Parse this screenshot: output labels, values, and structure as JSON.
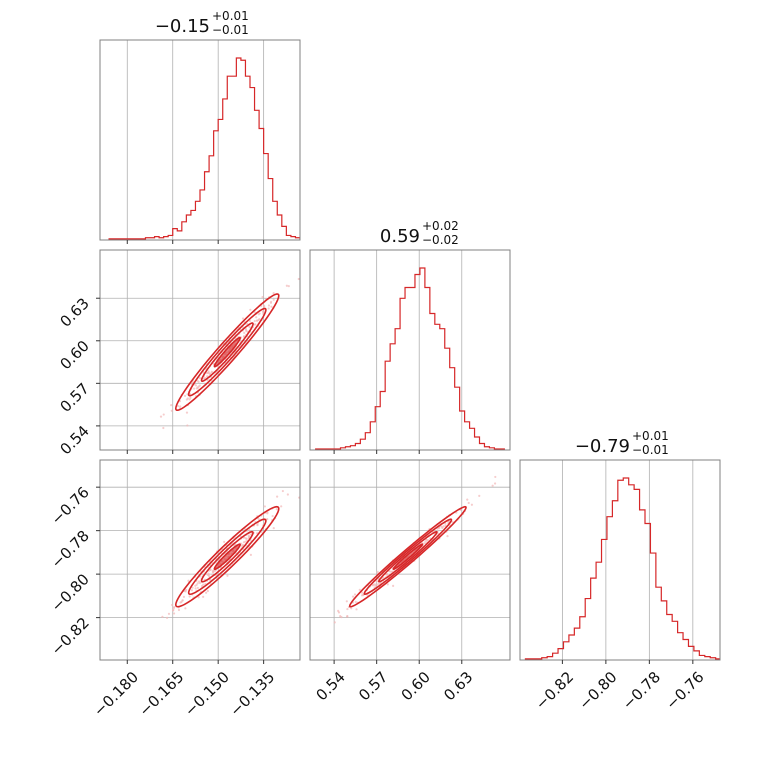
{
  "chart_data": {
    "type": "corner",
    "parameters": [
      {
        "range": [
          -0.189,
          -0.123
        ],
        "ticks": [
          -0.18,
          -0.165,
          -0.15,
          -0.135
        ],
        "tick_labels": [
          "−0.180",
          "−0.165",
          "−0.150",
          "−0.135"
        ],
        "title": {
          "median": "−0.15",
          "plus": "+0.01",
          "minus": "−0.01"
        },
        "hist": {
          "bins": [
            -0.186,
            -0.1845,
            -0.183,
            -0.1815,
            -0.18,
            -0.1785,
            -0.177,
            -0.1755,
            -0.174,
            -0.1725,
            -0.171,
            -0.1695,
            -0.168,
            -0.1665,
            -0.165,
            -0.1635,
            -0.162,
            -0.1605,
            -0.159,
            -0.1575,
            -0.156,
            -0.1545,
            -0.153,
            -0.1515,
            -0.15,
            -0.1485,
            -0.147,
            -0.1455,
            -0.144,
            -0.1425,
            -0.141,
            -0.1395,
            -0.138,
            -0.1365,
            -0.135,
            -0.1335,
            -0.132,
            -0.1305,
            -0.129,
            -0.1275,
            -0.126,
            -0.1245
          ],
          "counts": [
            0.5,
            0.5,
            0.5,
            0.5,
            0.5,
            0.5,
            0.5,
            0.5,
            1,
            1,
            1.5,
            1,
            1.5,
            2,
            5,
            4,
            8,
            11,
            13,
            17,
            22,
            30,
            37,
            48,
            53,
            62,
            72,
            72,
            80,
            79,
            72,
            67,
            57,
            49,
            38,
            27,
            17,
            11,
            6,
            2,
            1.5,
            1
          ]
        }
      },
      {
        "range": [
          0.523,
          0.664
        ],
        "ticks": [
          0.54,
          0.57,
          0.6,
          0.63
        ],
        "tick_labels": [
          "0.54",
          "0.57",
          "0.60",
          "0.63"
        ],
        "title": {
          "median": "0.59",
          "plus": "+0.02",
          "minus": "−0.02"
        },
        "hist": {
          "bins": [
            0.527,
            0.5305,
            0.534,
            0.5375,
            0.541,
            0.5445,
            0.548,
            0.5515,
            0.555,
            0.5585,
            0.562,
            0.5655,
            0.569,
            0.5725,
            0.576,
            0.5795,
            0.583,
            0.5865,
            0.59,
            0.5935,
            0.597,
            0.6005,
            0.604,
            0.6075,
            0.611,
            0.6145,
            0.618,
            0.6215,
            0.625,
            0.6285,
            0.632,
            0.6355,
            0.639,
            0.6425,
            0.646,
            0.6495,
            0.653,
            0.6565
          ],
          "counts": [
            0.5,
            0.5,
            0.5,
            0.5,
            0.5,
            1,
            1.5,
            2,
            3,
            5,
            8,
            13,
            20,
            27,
            41,
            49,
            56,
            70,
            75,
            75,
            81,
            84,
            75,
            63,
            58,
            56,
            47,
            38,
            29,
            18,
            13,
            10,
            6,
            3,
            1.5,
            1,
            0.5,
            0.5
          ]
        }
      },
      {
        "range": [
          -0.8395,
          -0.7475
        ],
        "ticks": [
          -0.82,
          -0.8,
          -0.78,
          -0.76
        ],
        "tick_labels": [
          "−0.82",
          "−0.80",
          "−0.78",
          "−0.76"
        ],
        "title": {
          "median": "−0.79",
          "plus": "+0.01",
          "minus": "−0.01"
        },
        "hist": {
          "bins": [
            -0.837,
            -0.8345,
            -0.832,
            -0.8295,
            -0.827,
            -0.8245,
            -0.822,
            -0.8195,
            -0.817,
            -0.8145,
            -0.812,
            -0.8095,
            -0.807,
            -0.8045,
            -0.802,
            -0.7995,
            -0.797,
            -0.7945,
            -0.792,
            -0.7895,
            -0.787,
            -0.7845,
            -0.782,
            -0.7795,
            -0.777,
            -0.7745,
            -0.772,
            -0.7695,
            -0.767,
            -0.7645,
            -0.762,
            -0.7595,
            -0.757,
            -0.7545,
            -0.752,
            -0.7495
          ],
          "counts": [
            0.5,
            0.5,
            0.5,
            1,
            1.5,
            3,
            5,
            8,
            11,
            14,
            19,
            27,
            36,
            43,
            53,
            63,
            70,
            79,
            80,
            77,
            75,
            66,
            60,
            47,
            32,
            26,
            20,
            17,
            12,
            9,
            6,
            4,
            2,
            1.5,
            1,
            0.5
          ]
        }
      }
    ],
    "correlation": {
      "rho_01": 0.97,
      "rho_02": 0.96,
      "rho_12": 0.985
    },
    "center": [
      -0.147,
      0.592,
      -0.792
    ],
    "sigma": [
      0.0085,
      0.0205,
      0.0115
    ],
    "grid": true,
    "color": "#d62728",
    "scatter_color": "#f2b8b8"
  }
}
